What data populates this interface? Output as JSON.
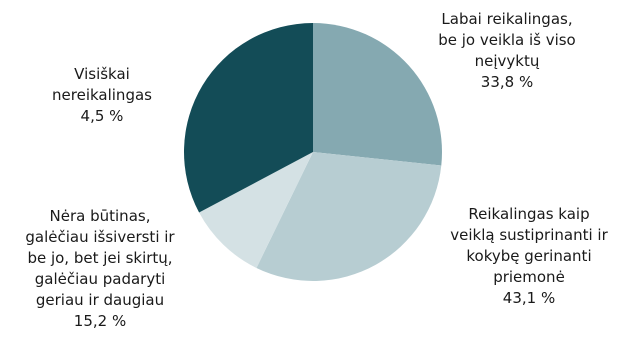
{
  "chart_data": {
    "type": "pie",
    "title": "",
    "slices": [
      {
        "label": "Labai reikalingas, be jo veikla iš viso neįvyktų",
        "label_lines": [
          "Labai reikalingas,",
          "be jo veikla iš viso",
          "neįvyktų"
        ],
        "value": 33.8,
        "value_text": "33,8 %",
        "color": "#85a9b1"
      },
      {
        "label": "Reikalingas kaip veiklą sustiprinanti ir kokybę gerinanti priemonė",
        "label_lines": [
          "Reikalingas kaip",
          "veiklą sustiprinanti ir",
          "kokybę gerinanti",
          "priemonė"
        ],
        "value": 43.1,
        "value_text": "43,1 %",
        "color": "#b7cdd2"
      },
      {
        "label": "Nėra būtinas, galėčiau išsiversti ir be jo, bet jei skirtų, galėčiau padaryti geriau ir daugiau",
        "label_lines": [
          "Nėra būtinas,",
          "galėčiau išsiversti ir",
          "be jo, bet jei skirtų,",
          "galėčiau padaryti",
          "geriau ir daugiau"
        ],
        "value": 15.2,
        "value_text": "15,2 %",
        "color": "#d4e1e4"
      },
      {
        "label": "Visiškai nereikalingas",
        "label_lines": [
          "Visiškai",
          "nereikalingas"
        ],
        "value": 4.5,
        "value_text": "4,5 %",
        "color": "#134c57"
      }
    ],
    "legend": "none"
  }
}
